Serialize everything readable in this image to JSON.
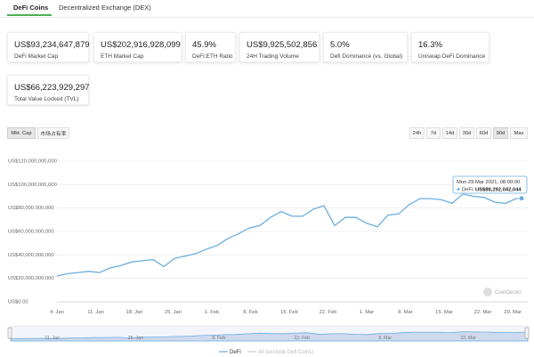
{
  "tabs": [
    {
      "label": "DeFi Coins",
      "active": true
    },
    {
      "label": "Decentralized Exchange (DEX)",
      "active": false
    }
  ],
  "stats": [
    {
      "value": "US$93,234,647,879",
      "label": "DeFi Market Cap"
    },
    {
      "value": "US$202,916,928,099",
      "label": "ETH Market Cap"
    },
    {
      "value": "45.9%",
      "label": "DeFi:ETH Ratio"
    },
    {
      "value": "US$9,925,502,856",
      "label": "24H Trading Volume"
    },
    {
      "value": "5.0%",
      "label": "Defi Dominance (vs. Global)"
    },
    {
      "value": "16.3%",
      "label": "Uniswap DeFi Dominance"
    },
    {
      "value": "US$66,223,929,297",
      "label": "Total Value Locked (TVL)"
    }
  ],
  "chart_toggles": [
    {
      "label": "Mkt. Cap",
      "active": true
    },
    {
      "label": "市场占有率",
      "active": false
    }
  ],
  "range_buttons": [
    {
      "label": "24h",
      "active": false
    },
    {
      "label": "7d",
      "active": false
    },
    {
      "label": "14d",
      "active": false
    },
    {
      "label": "30d",
      "active": false
    },
    {
      "label": "60d",
      "active": false
    },
    {
      "label": "90d",
      "active": true
    },
    {
      "label": "Max",
      "active": false
    }
  ],
  "tooltip": {
    "title": "Mon 29 Mar 2021, 08:00:00",
    "series_label": "DeFi:",
    "value": "US$88,292,042,044"
  },
  "watermark": "CoinGecko",
  "colors": {
    "line": "#6aaee0",
    "accent_green": "#4caf50",
    "navigator_fill": "#cfd9ee"
  },
  "chart_data": {
    "type": "line",
    "y_ticks": [
      "US$0.00",
      "US$20,000,000,000",
      "US$40,000,000,000",
      "US$60,000,000,000",
      "US$80,000,000,000",
      "US$100,000,000,000",
      "US$120,000,000,000"
    ],
    "ylim": [
      0,
      120000000000
    ],
    "x_ticks": [
      "4. Jan",
      "11. Jan",
      "18. Jan",
      "25. Jan",
      "1. Feb",
      "8. Feb",
      "15. Feb",
      "22. Feb",
      "1. Mar",
      "8. Mar",
      "15. Mar",
      "22. Mar",
      "29. Mar"
    ],
    "xlim": [
      0,
      87
    ],
    "series": [
      {
        "name": "DeFi",
        "x": [
          0,
          2,
          4,
          6,
          8,
          10,
          12,
          14,
          16,
          18,
          20,
          22,
          24,
          26,
          28,
          30,
          32,
          34,
          36,
          38,
          40,
          42,
          44,
          46,
          48,
          50,
          52,
          54,
          56,
          58,
          60,
          62,
          64,
          66,
          68,
          70,
          72,
          74,
          76,
          78,
          80,
          82,
          84,
          86,
          87
        ],
        "values": [
          22,
          24,
          25,
          26,
          25,
          29,
          31,
          34,
          35,
          36,
          30,
          37,
          39,
          41,
          45,
          48,
          54,
          58,
          63,
          65,
          72,
          77,
          73,
          73,
          79,
          82,
          65,
          72,
          72,
          67,
          64,
          74,
          75,
          83,
          88,
          88,
          87,
          84,
          92,
          90,
          89,
          85,
          84,
          88,
          88.3
        ]
      },
      {
        "name": "All (exclude Defi Coins)",
        "values": []
      }
    ]
  },
  "navigator": {
    "x_ticks": [
      "11. Jan",
      "25. Jan",
      "8. Feb",
      "22. Feb",
      "8. Mar",
      "22. Mar"
    ]
  }
}
